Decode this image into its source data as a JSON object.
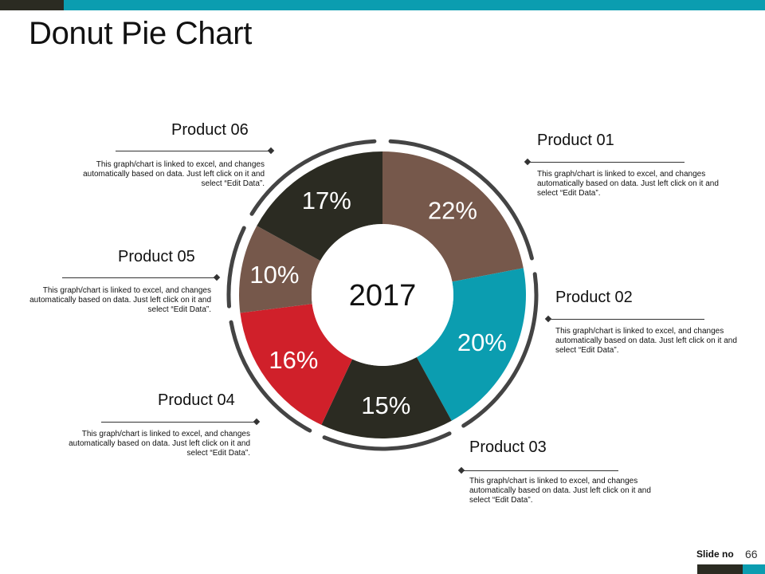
{
  "slide": {
    "title": "Donut Pie Chart",
    "footer_label": "Slide no",
    "footer_number": "66"
  },
  "colors": {
    "teal": "#0b9db0",
    "dark": "#2b2b22",
    "brown": "#76584b",
    "red": "#d0202a",
    "ring": "#444444"
  },
  "chart_data": {
    "type": "pie",
    "variant": "donut",
    "center_label": "2017",
    "categories": [
      "Product 01",
      "Product 02",
      "Product 03",
      "Product 04",
      "Product 05",
      "Product 06"
    ],
    "values": [
      22,
      20,
      15,
      16,
      10,
      17
    ],
    "value_labels": [
      "22%",
      "20%",
      "15%",
      "16%",
      "10%",
      "17%"
    ],
    "slice_colors": [
      "#76584b",
      "#0b9db0",
      "#2b2b22",
      "#d0202a",
      "#76584b",
      "#2b2b22"
    ],
    "label_colors": [
      "#ffffff",
      "#ffffff",
      "#ffffff",
      "#ffffff",
      "#ffffff",
      "#ffffff"
    ],
    "slice_order": "clockwise from top"
  },
  "callouts": [
    {
      "name": "Product 01",
      "desc": "This graph/chart is linked to excel, and changes automatically based on data. Just left click on it and select “Edit Data”."
    },
    {
      "name": "Product 02",
      "desc": "This graph/chart is linked to excel, and changes automatically based on data. Just left click on it and select “Edit Data”."
    },
    {
      "name": "Product 03",
      "desc": "This graph/chart is linked to excel, and changes automatically based on data. Just left click on it and select “Edit Data”."
    },
    {
      "name": "Product 04",
      "desc": "This graph/chart is linked to excel, and changes automatically based on data. Just left click on it and select “Edit Data”."
    },
    {
      "name": "Product 05",
      "desc": "This graph/chart is linked to excel, and changes automatically based on data. Just left click on it and select “Edit Data”."
    },
    {
      "name": "Product 06",
      "desc": "This graph/chart is linked to excel, and changes automatically based on data. Just left click on it and select “Edit Data”."
    }
  ]
}
